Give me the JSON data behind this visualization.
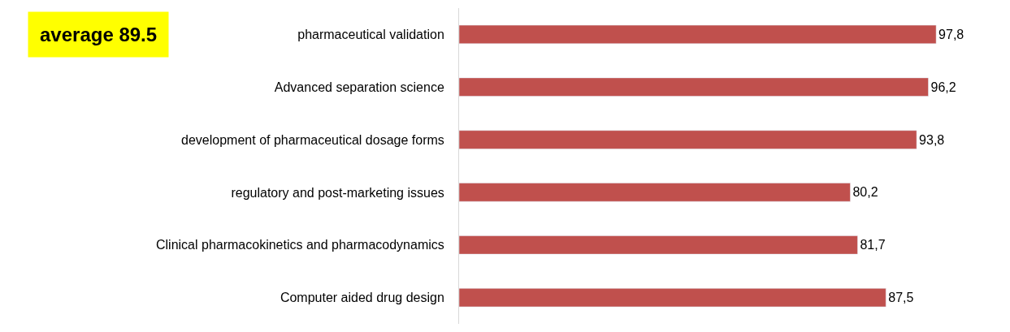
{
  "chart_data": {
    "type": "bar",
    "orientation": "horizontal",
    "categories": [
      "pharmaceutical validation",
      "Advanced separation science",
      "development of pharmaceutical dosage forms",
      "regulatory and post-marketing issues",
      "Clinical pharmacokinetics and pharmacodynamics",
      "Computer aided drug design"
    ],
    "values": [
      97.8,
      96.2,
      93.8,
      80.2,
      81.7,
      87.5
    ],
    "value_labels": [
      "97,8",
      "96,2",
      "93,8",
      "80,2",
      "81,7",
      "87,5"
    ],
    "color": "#c0504d",
    "legend": false,
    "annotations": [
      "average 89.5"
    ]
  }
}
